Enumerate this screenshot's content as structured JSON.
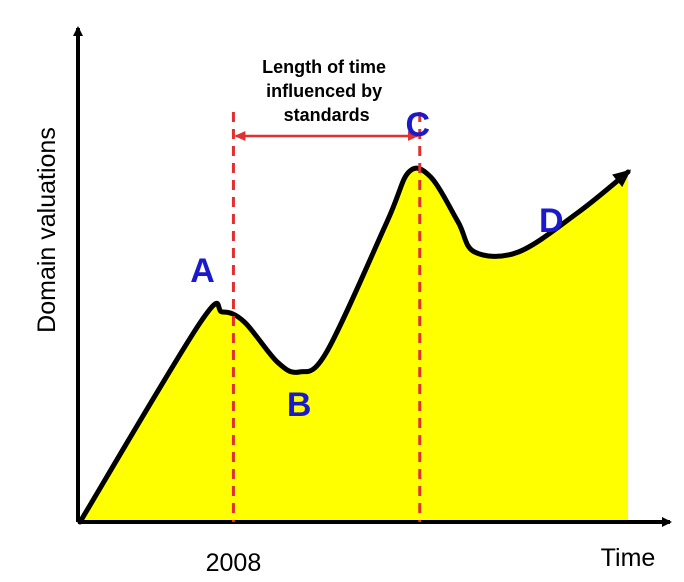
{
  "chart_data": {
    "type": "area",
    "title": "",
    "xlabel": "Time",
    "ylabel": "Domain valuations",
    "x_tick_labels": [
      "2008"
    ],
    "grid": false,
    "legend": "none",
    "curve_points": [
      {
        "x": 0,
        "y": 0
      },
      {
        "x": 0.22,
        "y": 0.4
      },
      {
        "x": 0.26,
        "y": 0.42
      },
      {
        "x": 0.3,
        "y": 0.4
      },
      {
        "x": 0.36,
        "y": 0.32
      },
      {
        "x": 0.4,
        "y": 0.3
      },
      {
        "x": 0.45,
        "y": 0.34
      },
      {
        "x": 0.56,
        "y": 0.6
      },
      {
        "x": 0.6,
        "y": 0.7
      },
      {
        "x": 0.64,
        "y": 0.69
      },
      {
        "x": 0.69,
        "y": 0.6
      },
      {
        "x": 0.72,
        "y": 0.54
      },
      {
        "x": 0.8,
        "y": 0.54
      },
      {
        "x": 0.91,
        "y": 0.62
      },
      {
        "x": 1.0,
        "y": 0.7
      }
    ],
    "markers": [
      {
        "x": 0.28,
        "label": "2008"
      },
      {
        "x": 0.62,
        "label": ""
      }
    ],
    "points": [
      {
        "label": "A",
        "x": 0.26,
        "y": 0.42
      },
      {
        "label": "B",
        "x": 0.4,
        "y": 0.3
      },
      {
        "label": "C",
        "x": 0.62,
        "y": 0.7
      },
      {
        "label": "D",
        "x": 0.86,
        "y": 0.58
      }
    ],
    "annotation": [
      "Length of time",
      "influenced by",
      "standards"
    ],
    "colors": {
      "fill": "#ffff00",
      "curve": "#000000",
      "marker": "#e03030",
      "point_label": "#1a1acc",
      "axis": "#000000"
    }
  }
}
